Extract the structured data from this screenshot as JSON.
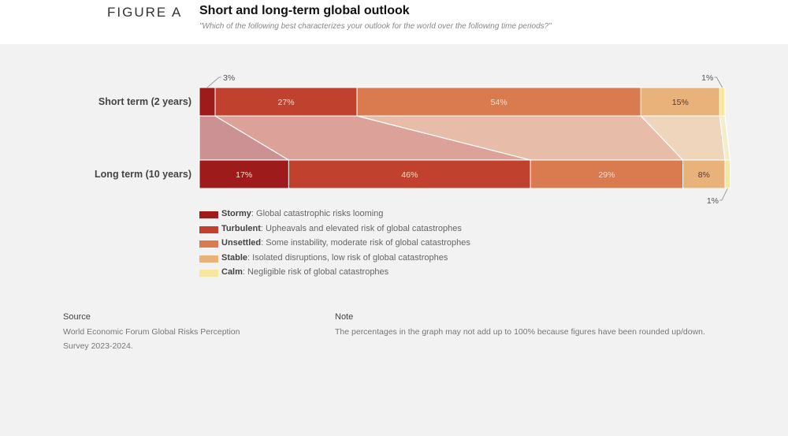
{
  "figure": {
    "label": "FIGURE A",
    "title": "Short and long-term global outlook",
    "subtitle": "\"Which of the following best characterizes your outlook for the world over the following time periods?\""
  },
  "chart_data": {
    "type": "bar",
    "orientation": "horizontal-stacked",
    "categories": [
      "Short term (2 years)",
      "Long term (10 years)"
    ],
    "series": [
      {
        "name": "Stormy",
        "description": "Global catastrophic risks looming",
        "color": "#9e1b1c",
        "values": [
          3,
          17
        ],
        "labels": [
          "3%",
          "17%"
        ]
      },
      {
        "name": "Turbulent",
        "description": "Upheavals and elevated risk of global catastrophes",
        "color": "#c0412d",
        "values": [
          27,
          46
        ],
        "labels": [
          "27%",
          "46%"
        ]
      },
      {
        "name": "Unsettled",
        "description": "Some instability, moderate risk of global catastrophes",
        "color": "#d97a4f",
        "values": [
          54,
          29
        ],
        "labels": [
          "54%",
          "29%"
        ]
      },
      {
        "name": "Stable",
        "description": "Isolated disruptions, low risk of global catastrophes",
        "color": "#e9b27b",
        "values": [
          15,
          8
        ],
        "labels": [
          "15%",
          "8%"
        ]
      },
      {
        "name": "Calm",
        "description": "Negligible risk of global catastrophes",
        "color": "#f6e6a0",
        "values": [
          1,
          1
        ],
        "labels": [
          "1%",
          "1%"
        ]
      }
    ],
    "xlim": [
      0,
      100
    ],
    "legend_position": "bottom-left",
    "grid": false
  },
  "source": {
    "heading": "Source",
    "text": "World Economic Forum Global Risks Perception Survey 2023-2024."
  },
  "note": {
    "heading": "Note",
    "text": "The percentages in the graph may not add up to 100% because figures have been rounded up/down."
  }
}
